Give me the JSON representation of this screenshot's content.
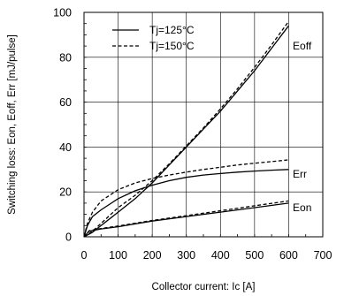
{
  "chart_data": {
    "type": "line",
    "title": "",
    "xlabel": "Collector current: Ic [A]",
    "ylabel": "Switching loss: Eon, Eoff, Err [mJ/pulse]",
    "xlim": [
      0,
      700
    ],
    "ylim": [
      0,
      100
    ],
    "xticks": [
      0,
      100,
      200,
      300,
      400,
      500,
      600,
      700
    ],
    "yticks": [
      0,
      20,
      40,
      60,
      80,
      100
    ],
    "grid": true,
    "legend_position": "top-left",
    "legend": [
      {
        "label": "Tj=125°C",
        "style": "solid"
      },
      {
        "label": "Tj=150°C",
        "style": "dashed"
      }
    ],
    "curve_labels": [
      {
        "text": "Eoff",
        "x": 612,
        "y": 85
      },
      {
        "text": "Err",
        "x": 612,
        "y": 28
      },
      {
        "text": "Eon",
        "x": 612,
        "y": 13
      }
    ],
    "series": [
      {
        "curve": "Eoff",
        "style": "solid",
        "x": [
          0,
          25,
          50,
          100,
          150,
          200,
          250,
          300,
          350,
          400,
          450,
          500,
          550,
          600
        ],
        "y": [
          0,
          2,
          5,
          11,
          17,
          24,
          32,
          40,
          48,
          56,
          65,
          74,
          84,
          94
        ]
      },
      {
        "curve": "Eoff",
        "style": "dashed",
        "x": [
          0,
          25,
          50,
          100,
          150,
          200,
          250,
          300,
          350,
          400,
          450,
          500,
          550,
          600
        ],
        "y": [
          0,
          2.5,
          6,
          13,
          18.5,
          25,
          32.5,
          40.5,
          48.5,
          57,
          66,
          75.5,
          85.5,
          96
        ]
      },
      {
        "curve": "Err",
        "style": "solid",
        "x": [
          0,
          10,
          25,
          50,
          100,
          150,
          200,
          250,
          300,
          350,
          400,
          450,
          500,
          550,
          600
        ],
        "y": [
          0,
          5,
          9,
          12,
          17,
          20.5,
          23,
          25,
          26.5,
          27.5,
          28.2,
          28.8,
          29.3,
          29.7,
          30
        ]
      },
      {
        "curve": "Err",
        "style": "dashed",
        "x": [
          0,
          10,
          25,
          50,
          100,
          150,
          200,
          250,
          300,
          350,
          400,
          450,
          500,
          550,
          600
        ],
        "y": [
          0,
          6,
          11,
          16,
          21,
          24,
          26,
          27.5,
          28.8,
          30,
          31,
          32,
          32.8,
          33.5,
          34.3
        ]
      },
      {
        "curve": "Eon",
        "style": "solid",
        "x": [
          0,
          15,
          50,
          100,
          200,
          300,
          400,
          500,
          600
        ],
        "y": [
          0,
          2.5,
          3.5,
          4.5,
          7,
          9,
          11,
          13,
          15
        ]
      },
      {
        "curve": "Eon",
        "style": "dashed",
        "x": [
          0,
          15,
          50,
          100,
          200,
          300,
          400,
          500,
          600
        ],
        "y": [
          0,
          2.7,
          3.7,
          4.8,
          7.3,
          9.4,
          11.6,
          13.8,
          16
        ]
      }
    ]
  }
}
